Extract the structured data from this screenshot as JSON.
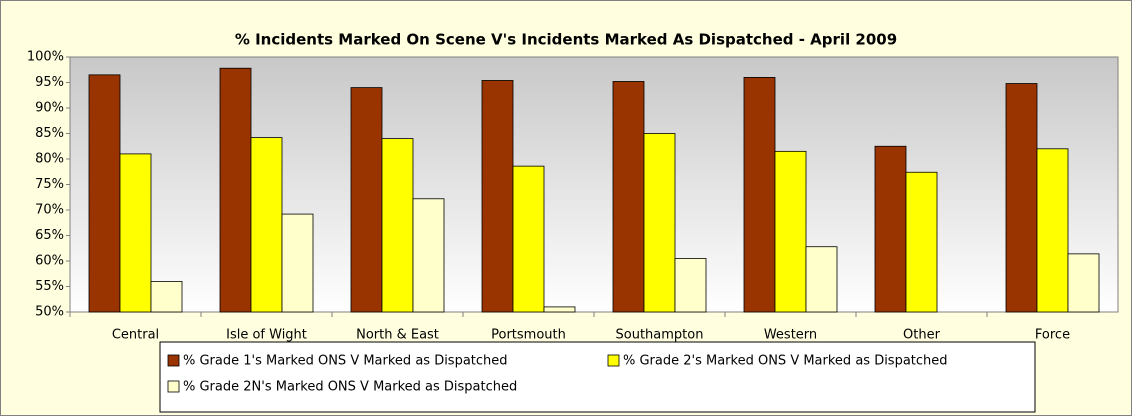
{
  "chart_data": {
    "type": "bar",
    "title": "% Incidents Marked On Scene V's Incidents Marked As Dispatched - April 2009",
    "categories": [
      "Central",
      "Isle of Wight",
      "North & East",
      "Portsmouth",
      "Southampton",
      "Western",
      "Other",
      "Force"
    ],
    "series": [
      {
        "name": "% Grade 1's Marked ONS V Marked as Dispatched",
        "color": "#993300",
        "values": [
          96.5,
          97.8,
          94,
          95.4,
          95.2,
          96,
          82.5,
          94.8
        ]
      },
      {
        "name": "% Grade 2's Marked ONS V Marked as Dispatched",
        "color": "#ffff00",
        "values": [
          81,
          84.2,
          84,
          78.6,
          85,
          81.5,
          77.4,
          82
        ]
      },
      {
        "name": "% Grade 2N's Marked ONS V Marked as Dispatched",
        "color": "#ffffcc",
        "values": [
          56,
          69.2,
          72.2,
          51,
          60.5,
          62.8,
          null,
          61.4
        ]
      }
    ],
    "ylim": [
      50,
      100
    ],
    "yticks": [
      {
        "value": 50,
        "label": "50%"
      },
      {
        "value": 55,
        "label": "55%"
      },
      {
        "value": 60,
        "label": "60%"
      },
      {
        "value": 65,
        "label": "65%"
      },
      {
        "value": 70,
        "label": "70%"
      },
      {
        "value": 75,
        "label": "75%"
      },
      {
        "value": 80,
        "label": "80%"
      },
      {
        "value": 85,
        "label": "85%"
      },
      {
        "value": 90,
        "label": "90%"
      },
      {
        "value": 95,
        "label": "95%"
      },
      {
        "value": 100,
        "label": "100%"
      }
    ],
    "grid": false
  }
}
